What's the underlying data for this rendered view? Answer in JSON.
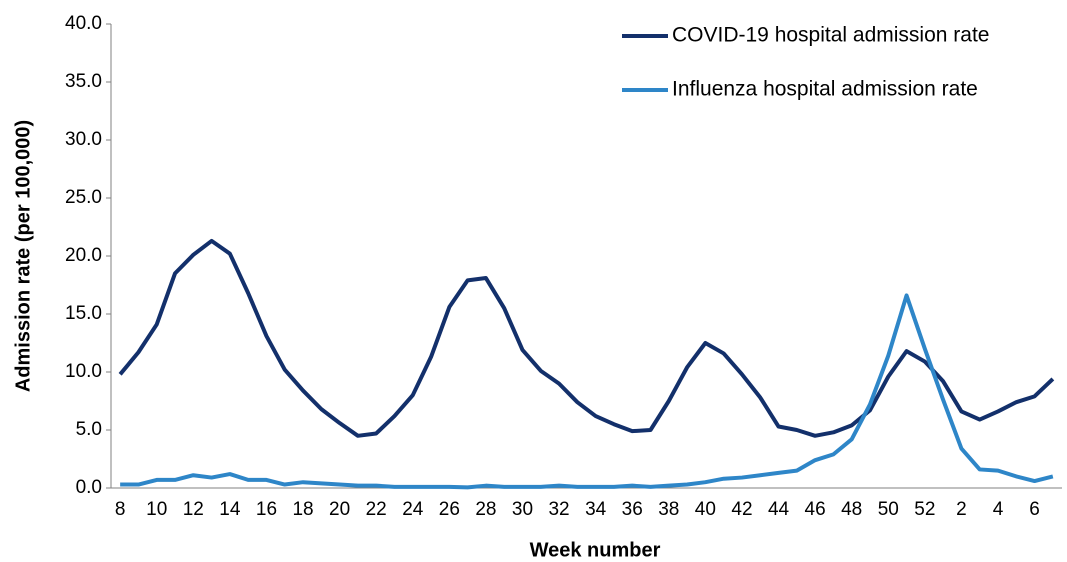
{
  "chart_data": {
    "type": "line",
    "x_label": "Week number",
    "y_label": "Admission rate (per 100,000)",
    "categories": [
      "8",
      null,
      "10",
      null,
      "12",
      null,
      "14",
      null,
      "16",
      null,
      "18",
      null,
      "20",
      null,
      "22",
      null,
      "24",
      null,
      "26",
      null,
      "28",
      null,
      "30",
      null,
      "32",
      null,
      "34",
      null,
      "36",
      null,
      "38",
      null,
      "40",
      null,
      "42",
      null,
      "44",
      null,
      "46",
      null,
      "48",
      null,
      "50",
      null,
      "52",
      null,
      "2",
      null,
      "4",
      null,
      "6",
      null
    ],
    "series": [
      {
        "name": "COVID-19 hospital admission rate",
        "color": "#13306b",
        "values": [
          9.8,
          11.7,
          14.1,
          18.5,
          20.1,
          21.3,
          20.2,
          16.8,
          13.1,
          10.2,
          8.4,
          6.8,
          5.6,
          4.5,
          4.7,
          6.2,
          8.0,
          11.3,
          15.6,
          17.9,
          18.1,
          15.5,
          11.9,
          10.1,
          9.0,
          7.4,
          6.2,
          5.5,
          4.9,
          5.0,
          7.5,
          10.4,
          12.5,
          11.6,
          9.8,
          7.8,
          5.3,
          5.0,
          4.5,
          4.8,
          5.4,
          6.7,
          9.6,
          11.8,
          10.9,
          9.2,
          6.6,
          5.9,
          6.6,
          7.4,
          7.9,
          9.4
        ]
      },
      {
        "name": "Influenza hospital admission rate",
        "color": "#2e86c8",
        "values": [
          0.3,
          0.3,
          0.7,
          0.7,
          1.1,
          0.9,
          1.2,
          0.7,
          0.7,
          0.3,
          0.5,
          0.4,
          0.3,
          0.2,
          0.2,
          0.1,
          0.1,
          0.1,
          0.1,
          0.05,
          0.2,
          0.1,
          0.1,
          0.1,
          0.2,
          0.1,
          0.1,
          0.1,
          0.2,
          0.1,
          0.2,
          0.3,
          0.5,
          0.8,
          0.9,
          1.1,
          1.3,
          1.5,
          2.4,
          2.9,
          4.2,
          7.2,
          11.4,
          16.6,
          12.0,
          7.6,
          3.4,
          1.6,
          1.5,
          1.0,
          0.6,
          1.0
        ]
      }
    ],
    "ylim": [
      0,
      40
    ],
    "yticks": [
      {
        "value": 0,
        "label": "0.0"
      },
      {
        "value": 5,
        "label": "5.0"
      },
      {
        "value": 10,
        "label": "10.0"
      },
      {
        "value": 15,
        "label": "15.0"
      },
      {
        "value": 20,
        "label": "20.0"
      },
      {
        "value": 25,
        "label": "25.0"
      },
      {
        "value": 30,
        "label": "30.0"
      },
      {
        "value": 35,
        "label": "35.0"
      },
      {
        "value": 40,
        "label": "40.0"
      }
    ],
    "grid": false,
    "legend": "upper right"
  }
}
